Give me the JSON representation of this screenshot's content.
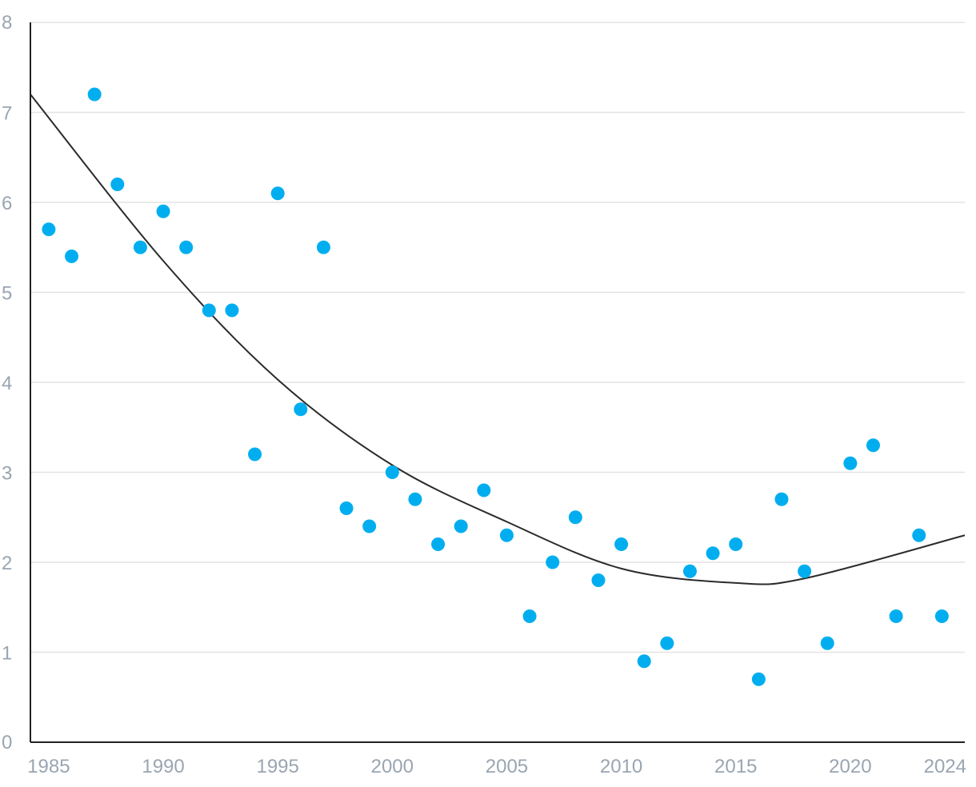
{
  "chart_data": {
    "type": "scatter",
    "title": "",
    "xlabel": "",
    "ylabel": "",
    "xlim": [
      1984.2,
      2025
    ],
    "ylim": [
      0,
      8
    ],
    "grid": true,
    "legend": "none",
    "x_ticks": [
      {
        "value": 1985,
        "label": "1985"
      },
      {
        "value": 1990,
        "label": "1990"
      },
      {
        "value": 1995,
        "label": "1995"
      },
      {
        "value": 2000,
        "label": "2000"
      },
      {
        "value": 2005,
        "label": "2005"
      },
      {
        "value": 2010,
        "label": "2010"
      },
      {
        "value": 2015,
        "label": "2015"
      },
      {
        "value": 2020,
        "label": "2020"
      },
      {
        "value": 2024,
        "label": "2024"
      }
    ],
    "y_ticks": [
      {
        "value": 0,
        "label": "0"
      },
      {
        "value": 1,
        "label": "1"
      },
      {
        "value": 2,
        "label": "2"
      },
      {
        "value": 3,
        "label": "3"
      },
      {
        "value": 4,
        "label": "4"
      },
      {
        "value": 5,
        "label": "5"
      },
      {
        "value": 6,
        "label": "6"
      },
      {
        "value": 7,
        "label": "7"
      },
      {
        "value": 8,
        "label": "8"
      }
    ],
    "colors": {
      "points": "#00aeef",
      "trend": "#2b2b2b",
      "grid": "#e3e3e3",
      "ticks": "#9aa5b1",
      "axis": "#222222"
    },
    "points": [
      {
        "x": 1985,
        "y": 5.7
      },
      {
        "x": 1986,
        "y": 5.4
      },
      {
        "x": 1987,
        "y": 7.2
      },
      {
        "x": 1988,
        "y": 6.2
      },
      {
        "x": 1989,
        "y": 5.5
      },
      {
        "x": 1990,
        "y": 5.9
      },
      {
        "x": 1991,
        "y": 5.5
      },
      {
        "x": 1992,
        "y": 4.8
      },
      {
        "x": 1993,
        "y": 4.8
      },
      {
        "x": 1994,
        "y": 3.2
      },
      {
        "x": 1995,
        "y": 6.1
      },
      {
        "x": 1996,
        "y": 3.7
      },
      {
        "x": 1997,
        "y": 5.5
      },
      {
        "x": 1998,
        "y": 2.6
      },
      {
        "x": 1999,
        "y": 2.4
      },
      {
        "x": 2000,
        "y": 3.0
      },
      {
        "x": 2001,
        "y": 2.7
      },
      {
        "x": 2002,
        "y": 2.2
      },
      {
        "x": 2003,
        "y": 2.4
      },
      {
        "x": 2004,
        "y": 2.8
      },
      {
        "x": 2005,
        "y": 2.3
      },
      {
        "x": 2006,
        "y": 1.4
      },
      {
        "x": 2007,
        "y": 2.0
      },
      {
        "x": 2008,
        "y": 2.5
      },
      {
        "x": 2009,
        "y": 1.8
      },
      {
        "x": 2010,
        "y": 2.2
      },
      {
        "x": 2011,
        "y": 0.9
      },
      {
        "x": 2012,
        "y": 1.1
      },
      {
        "x": 2013,
        "y": 1.9
      },
      {
        "x": 2014,
        "y": 2.1
      },
      {
        "x": 2015,
        "y": 2.2
      },
      {
        "x": 2016,
        "y": 0.7
      },
      {
        "x": 2017,
        "y": 2.7
      },
      {
        "x": 2018,
        "y": 1.9
      },
      {
        "x": 2019,
        "y": 1.1
      },
      {
        "x": 2020,
        "y": 3.1
      },
      {
        "x": 2021,
        "y": 3.3
      },
      {
        "x": 2022,
        "y": 1.4
      },
      {
        "x": 2023,
        "y": 2.3
      },
      {
        "x": 2024,
        "y": 1.4
      }
    ],
    "trendline": {
      "type": "polynomial",
      "points": [
        {
          "x": 1984.2,
          "y": 7.2
        },
        {
          "x": 1990,
          "y": 5.35
        },
        {
          "x": 1995,
          "y": 4.03
        },
        {
          "x": 2000,
          "y": 3.08
        },
        {
          "x": 2005,
          "y": 2.45
        },
        {
          "x": 2010,
          "y": 1.93
        },
        {
          "x": 2015,
          "y": 1.77
        },
        {
          "x": 2018,
          "y": 1.82
        },
        {
          "x": 2025,
          "y": 2.3
        }
      ]
    }
  }
}
